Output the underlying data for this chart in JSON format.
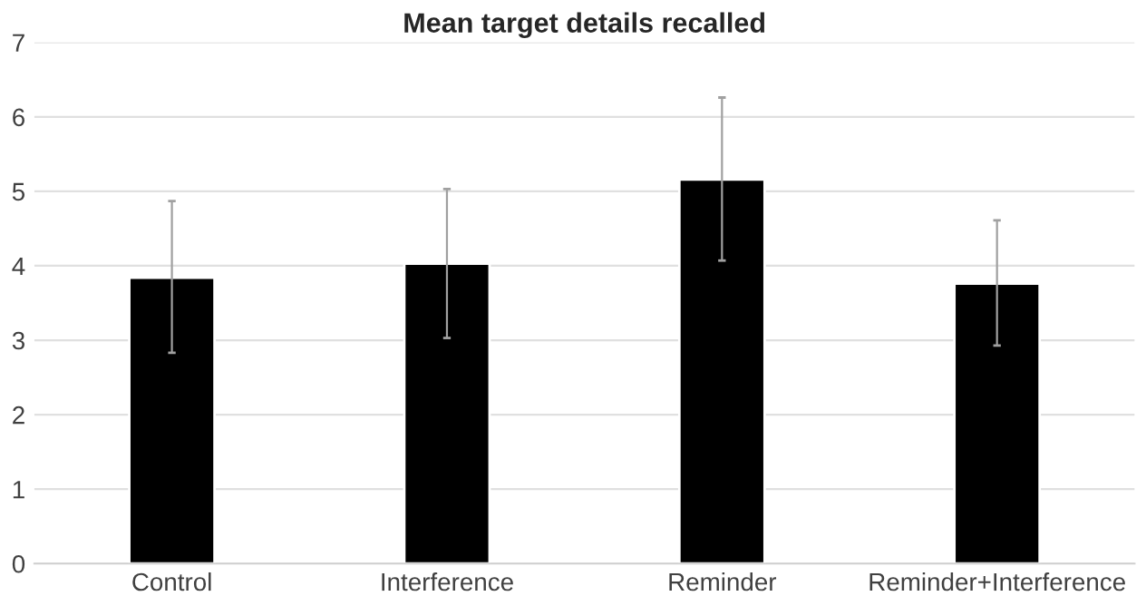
{
  "chart_data": {
    "type": "bar",
    "title": "Mean target details recalled",
    "categories": [
      "Control",
      "Interference",
      "Reminder",
      "Reminder+Interference"
    ],
    "values": [
      3.84,
      4.03,
      5.16,
      3.76
    ],
    "errors": [
      [
        2.83,
        4.87
      ],
      [
        3.03,
        5.03
      ],
      [
        4.07,
        6.26
      ],
      [
        2.93,
        4.61
      ]
    ],
    "color": "#000000",
    "ylim": [
      0,
      7
    ],
    "yticks": [
      0,
      1,
      2,
      3,
      4,
      5,
      6,
      7
    ],
    "grid": "y"
  }
}
